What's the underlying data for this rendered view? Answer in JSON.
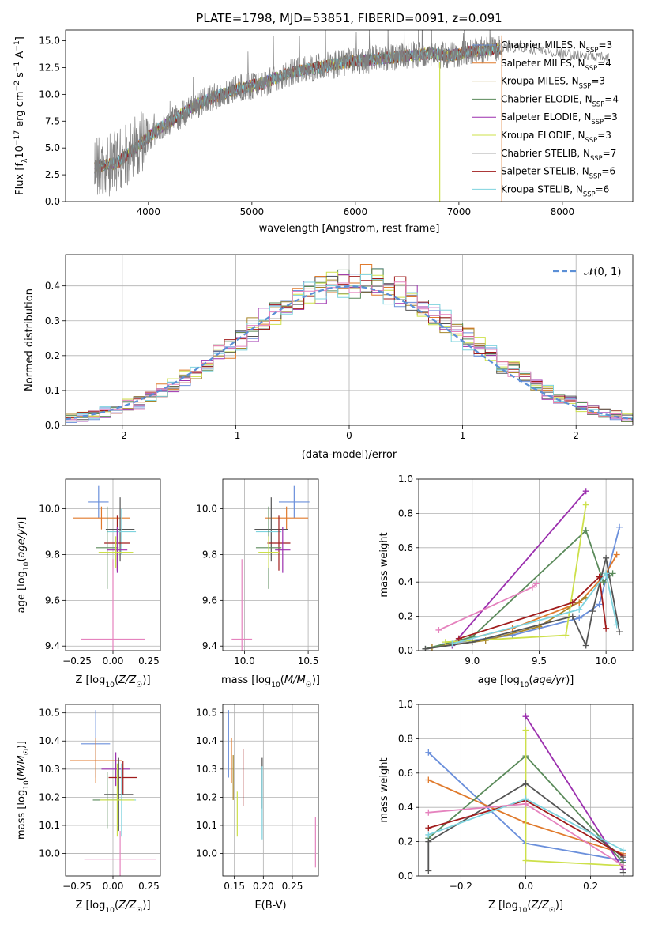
{
  "colors": {
    "Chabrier MILES": "#6a8fdb",
    "Salpeter MILES": "#e07a2c",
    "Kroupa MILES": "#a8862a",
    "Chabrier ELODIE": "#5a8a5a",
    "Salpeter ELODIE": "#9b2fae",
    "Kroupa ELODIE": "#cde04a",
    "Chabrier STELIB": "#555555",
    "Salpeter STELIB": "#a01c1c",
    "Kroupa STELIB": "#7ed3de",
    "pink": "#e583be",
    "data": "#808080"
  },
  "chart_data": [
    {
      "id": "spectrum",
      "type": "line",
      "title": "PLATE=1798, MJD=53851, FIBERID=0091, z=0.091",
      "xlabel": "wavelength [Angstrom, rest frame]",
      "ylabel_parts": [
        "Flux [f",
        "λ",
        "10",
        "−17",
        " erg cm",
        "−2",
        " s",
        "−1",
        " A",
        "−1",
        "]"
      ],
      "xlim": [
        3200,
        8680
      ],
      "ylim": [
        0,
        16
      ],
      "xticks": [
        4000,
        5000,
        6000,
        7000,
        8000
      ],
      "yticks": [
        0.0,
        2.5,
        5.0,
        7.5,
        10.0,
        12.5,
        15.0
      ],
      "data_series": {
        "name": "data",
        "x": [
          3500,
          3700,
          3900,
          4100,
          4300,
          4500,
          4700,
          4900,
          5100,
          5300,
          5500,
          5700,
          5900,
          6100,
          6300,
          6500,
          6700,
          6900,
          7100,
          7300
        ],
        "y": [
          3.2,
          3.6,
          5.2,
          6.8,
          8.0,
          9.2,
          10.0,
          10.6,
          11.0,
          11.8,
          12.3,
          12.6,
          13.0,
          13.2,
          13.4,
          13.6,
          13.8,
          13.6,
          14.0,
          14.2
        ]
      },
      "tail_series": {
        "x": [
          7400,
          7600,
          7800,
          8000,
          8200,
          8400
        ],
        "y": [
          14.2,
          14.4,
          14.1,
          13.8,
          13.6,
          13.4
        ]
      },
      "legend": [
        {
          "label": "Chabrier MILES, N",
          "sub": "SSP",
          "tail": "=3"
        },
        {
          "label": "Salpeter MILES, N",
          "sub": "SSP",
          "tail": "=4"
        },
        {
          "label": "Kroupa MILES, N",
          "sub": "SSP",
          "tail": "=3"
        },
        {
          "label": "Chabrier ELODIE, N",
          "sub": "SSP",
          "tail": "=4"
        },
        {
          "label": "Salpeter ELODIE, N",
          "sub": "SSP",
          "tail": "=3"
        },
        {
          "label": "Kroupa ELODIE, N",
          "sub": "SSP",
          "tail": "=3"
        },
        {
          "label": "Chabrier STELIB, N",
          "sub": "SSP",
          "tail": "=7"
        },
        {
          "label": "Salpeter STELIB, N",
          "sub": "SSP",
          "tail": "=6"
        },
        {
          "label": "Kroupa STELIB, N",
          "sub": "SSP",
          "tail": "=6"
        }
      ]
    },
    {
      "id": "histogram",
      "type": "line",
      "xlabel": "(data-model)/error",
      "ylabel": "Normed distribution",
      "xlim": [
        -2.5,
        2.5
      ],
      "ylim": [
        0,
        0.49
      ],
      "xticks": [
        -2,
        -1,
        0,
        1,
        2
      ],
      "ytick_values": [
        0.0,
        0.1,
        0.2,
        0.3,
        0.4
      ],
      "ytick_labels": [
        "0.0",
        "0.1",
        "0.2",
        "0.3",
        "0.4"
      ],
      "legend_label": "𝒩(0, 1)",
      "bin_width": 0.1
    },
    {
      "id": "age-vs-z",
      "type": "scatter",
      "xlabel": "Z [log₁₀(Z/Z☉)]",
      "ylabel": "age  [log₁₀(age/yr)]",
      "xlim": [
        -0.33,
        0.33
      ],
      "ylim": [
        9.38,
        10.13
      ],
      "xtick_values": [
        -0.25,
        0.0,
        0.25
      ],
      "xtick_labels": [
        "−0.25",
        "0.00",
        "0.25"
      ],
      "ytick_values": [
        9.4,
        9.6,
        9.8,
        10.0
      ],
      "ytick_labels": [
        "9.4",
        "9.6",
        "9.8",
        "10.0"
      ],
      "points": [
        {
          "model": "Chabrier MILES",
          "x": -0.1,
          "xerr": 0.07,
          "y": 10.03,
          "yerr": 0.07
        },
        {
          "model": "Salpeter MILES",
          "x": -0.08,
          "xerr": 0.2,
          "y": 9.96,
          "yerr": 0.05
        },
        {
          "model": "Chabrier STELIB",
          "x": 0.05,
          "xerr": 0.1,
          "y": 9.91,
          "yerr": 0.14
        },
        {
          "model": "Kroupa STELIB",
          "x": 0.06,
          "xerr": 0.1,
          "y": 9.9,
          "yerr": 0.1
        },
        {
          "model": "Salpeter STELIB",
          "x": 0.03,
          "xerr": 0.09,
          "y": 9.85,
          "yerr": 0.12
        },
        {
          "model": "Chabrier ELODIE",
          "x": -0.04,
          "xerr": 0.08,
          "y": 9.83,
          "yerr": 0.18
        },
        {
          "model": "Salpeter ELODIE",
          "x": 0.03,
          "xerr": 0.07,
          "y": 9.82,
          "yerr": 0.1
        },
        {
          "model": "Kroupa ELODIE",
          "x": 0.02,
          "xerr": 0.12,
          "y": 9.81,
          "yerr": 0.07
        },
        {
          "model": "pink",
          "x": 0.0,
          "xerr": 0.22,
          "y": 9.43,
          "yerr": 0.35
        }
      ]
    },
    {
      "id": "age-vs-mass",
      "type": "scatter",
      "xlabel": "mass [log₁₀(M/M☉)]",
      "xlim": [
        9.83,
        10.58
      ],
      "ylim": [
        9.38,
        10.13
      ],
      "xtick_values": [
        10.0,
        10.5
      ],
      "xtick_labels": [
        "10.0",
        "10.5"
      ],
      "ytick_values": [
        9.4,
        9.6,
        9.8,
        10.0
      ],
      "ytick_labels": [
        "9.4",
        "9.6",
        "9.8",
        "10.0"
      ],
      "points": [
        {
          "model": "Chabrier MILES",
          "x": 10.39,
          "xerr": 0.12,
          "y": 10.03,
          "yerr": 0.07
        },
        {
          "model": "Salpeter MILES",
          "x": 10.33,
          "xerr": 0.17,
          "y": 9.96,
          "yerr": 0.05
        },
        {
          "model": "Chabrier STELIB",
          "x": 10.21,
          "xerr": 0.13,
          "y": 9.91,
          "yerr": 0.14
        },
        {
          "model": "Kroupa STELIB",
          "x": 10.19,
          "xerr": 0.1,
          "y": 9.9,
          "yerr": 0.1
        },
        {
          "model": "Salpeter STELIB",
          "x": 10.27,
          "xerr": 0.09,
          "y": 9.85,
          "yerr": 0.12
        },
        {
          "model": "Chabrier ELODIE",
          "x": 10.19,
          "xerr": 0.1,
          "y": 9.83,
          "yerr": 0.18
        },
        {
          "model": "Salpeter ELODIE",
          "x": 10.3,
          "xerr": 0.06,
          "y": 9.82,
          "yerr": 0.1
        },
        {
          "model": "Kroupa ELODIE",
          "x": 10.19,
          "xerr": 0.08,
          "y": 9.81,
          "yerr": 0.07
        },
        {
          "model": "pink",
          "x": 9.98,
          "xerr": 0.08,
          "y": 9.43,
          "yerr": 0.35
        }
      ]
    },
    {
      "id": "weight-vs-age",
      "type": "line",
      "xlabel": "age  [log₁₀(age/yr)]",
      "ylabel": "mass weight",
      "xlim": [
        8.6,
        10.2
      ],
      "ylim": [
        0,
        1
      ],
      "xtick_values": [
        9.0,
        9.5,
        10.0
      ],
      "xtick_labels": [
        "9.0",
        "9.5",
        "10.0"
      ],
      "ytick_values": [
        0.0,
        0.2,
        0.4,
        0.6,
        0.8,
        1.0
      ],
      "ytick_labels": [
        "0.0",
        "0.2",
        "0.4",
        "0.6",
        "0.8",
        "1.0"
      ],
      "series": [
        {
          "model": "Chabrier MILES",
          "x": [
            8.8,
            9.3,
            9.8,
            9.95,
            10.1
          ],
          "y": [
            0.04,
            0.09,
            0.19,
            0.27,
            0.72
          ]
        },
        {
          "model": "Salpeter MILES",
          "x": [
            8.7,
            9.3,
            9.8,
            10.0,
            10.08
          ],
          "y": [
            0.02,
            0.13,
            0.28,
            0.45,
            0.56
          ]
        },
        {
          "model": "Kroupa MILES",
          "x": [
            8.7,
            9.1,
            9.5,
            9.85
          ],
          "y": [
            0.02,
            0.06,
            0.14,
            0.31
          ]
        },
        {
          "model": "Chabrier ELODIE",
          "x": [
            8.65,
            9.0,
            9.85,
            9.98,
            10.05
          ],
          "y": [
            0.01,
            0.08,
            0.7,
            0.4,
            0.45
          ]
        },
        {
          "model": "Salpeter ELODIE",
          "x": [
            8.85,
            9.85
          ],
          "y": [
            0.03,
            0.93
          ]
        },
        {
          "model": "Kroupa ELODIE",
          "x": [
            8.8,
            9.7,
            9.85
          ],
          "y": [
            0.05,
            0.09,
            0.85
          ]
        },
        {
          "model": "Chabrier STELIB",
          "x": [
            8.65,
            9.0,
            9.75,
            9.85,
            9.9,
            10.0,
            10.1
          ],
          "y": [
            0.01,
            0.05,
            0.2,
            0.03,
            0.23,
            0.54,
            0.11
          ]
        },
        {
          "model": "Salpeter STELIB",
          "x": [
            8.9,
            9.75,
            9.95,
            10.0
          ],
          "y": [
            0.07,
            0.28,
            0.43,
            0.13
          ]
        },
        {
          "model": "Kroupa STELIB",
          "x": [
            8.85,
            9.8,
            10.0,
            10.08
          ],
          "y": [
            0.04,
            0.24,
            0.45,
            0.15
          ]
        },
        {
          "model": "pink",
          "x": [
            8.75,
            9.45,
            9.48
          ],
          "y": [
            0.12,
            0.37,
            0.39
          ]
        }
      ]
    },
    {
      "id": "mass-vs-z",
      "type": "scatter",
      "xlabel": "Z [log₁₀(Z/Z☉)]",
      "ylabel": "mass [log₁₀(M/M☉)]",
      "xlim": [
        -0.33,
        0.33
      ],
      "ylim": [
        9.92,
        10.53
      ],
      "xtick_values": [
        -0.25,
        0.0,
        0.25
      ],
      "xtick_labels": [
        "−0.25",
        "0.00",
        "0.25"
      ],
      "ytick_values": [
        10.0,
        10.1,
        10.2,
        10.3,
        10.4,
        10.5
      ],
      "ytick_labels": [
        "10.0",
        "10.1",
        "10.2",
        "10.3",
        "10.4",
        "10.5"
      ],
      "points": [
        {
          "model": "Chabrier MILES",
          "x": -0.12,
          "xerr": 0.1,
          "y": 10.39,
          "yerr": 0.12
        },
        {
          "model": "Salpeter MILES",
          "x": -0.12,
          "xerr": 0.18,
          "y": 10.33,
          "yerr": 0.08
        },
        {
          "model": "Salpeter ELODIE",
          "x": 0.02,
          "xerr": 0.1,
          "y": 10.3,
          "yerr": 0.06
        },
        {
          "model": "Salpeter STELIB",
          "x": 0.07,
          "xerr": 0.1,
          "y": 10.27,
          "yerr": 0.06
        },
        {
          "model": "Chabrier STELIB",
          "x": 0.04,
          "xerr": 0.1,
          "y": 10.21,
          "yerr": 0.13
        },
        {
          "model": "Kroupa STELIB",
          "x": 0.06,
          "xerr": 0.1,
          "y": 10.19,
          "yerr": 0.13
        },
        {
          "model": "Chabrier ELODIE",
          "x": -0.04,
          "xerr": 0.1,
          "y": 10.19,
          "yerr": 0.1
        },
        {
          "model": "Kroupa ELODIE",
          "x": 0.03,
          "xerr": 0.12,
          "y": 10.19,
          "yerr": 0.13
        },
        {
          "model": "pink",
          "x": 0.05,
          "xerr": 0.25,
          "y": 9.98,
          "yerr": 0.1
        }
      ]
    },
    {
      "id": "mass-vs-ebv",
      "type": "scatter",
      "xlabel": "E(B-V)",
      "xlim": [
        0.13,
        0.295
      ],
      "ylim": [
        9.92,
        10.53
      ],
      "xtick_values": [
        0.15,
        0.2,
        0.25
      ],
      "xtick_labels": [
        "0.15",
        "0.20",
        "0.25"
      ],
      "ytick_values": [
        10.0,
        10.1,
        10.2,
        10.3,
        10.4,
        10.5
      ],
      "ytick_labels": [
        "10.0",
        "10.1",
        "10.2",
        "10.3",
        "10.4",
        "10.5"
      ],
      "points": [
        {
          "model": "Chabrier MILES",
          "x": 0.14,
          "y": 10.39,
          "yerr": 0.12
        },
        {
          "model": "Salpeter MILES",
          "x": 0.145,
          "y": 10.33,
          "yerr": 0.08
        },
        {
          "model": "Kroupa MILES",
          "x": 0.148,
          "y": 10.27,
          "yerr": 0.08
        },
        {
          "model": "Kroupa ELODIE",
          "x": 0.155,
          "y": 10.14,
          "yerr": 0.08
        },
        {
          "model": "Salpeter STELIB",
          "x": 0.165,
          "y": 10.27,
          "yerr": 0.1
        },
        {
          "model": "Chabrier STELIB",
          "x": 0.198,
          "y": 10.25,
          "yerr": 0.09
        },
        {
          "model": "Kroupa STELIB",
          "x": 0.198,
          "y": 10.18,
          "yerr": 0.13
        },
        {
          "model": "pink",
          "x": 0.29,
          "y": 10.04,
          "yerr": 0.09
        }
      ]
    },
    {
      "id": "weight-vs-z",
      "type": "line",
      "xlabel": "Z [log₁₀(Z/Z☉)]",
      "ylabel": "mass weight",
      "xlim": [
        -0.33,
        0.33
      ],
      "ylim": [
        0,
        1
      ],
      "xtick_values": [
        -0.2,
        0.0,
        0.2
      ],
      "xtick_labels": [
        "−0.2",
        "0.0",
        "0.2"
      ],
      "ytick_values": [
        0.0,
        0.2,
        0.4,
        0.6,
        0.8,
        1.0
      ],
      "ytick_labels": [
        "0.0",
        "0.2",
        "0.4",
        "0.6",
        "0.8",
        "1.0"
      ],
      "series": [
        {
          "model": "Chabrier MILES",
          "x": [
            -0.3,
            0.0,
            0.3
          ],
          "y": [
            0.72,
            0.19,
            0.09
          ]
        },
        {
          "model": "Salpeter MILES",
          "x": [
            -0.3,
            0.0,
            0.3
          ],
          "y": [
            0.56,
            0.31,
            0.13
          ]
        },
        {
          "model": "Chabrier ELODIE",
          "x": [
            -0.3,
            0.0,
            0.3
          ],
          "y": [
            0.22,
            0.7,
            0.08
          ]
        },
        {
          "model": "Salpeter ELODIE",
          "x": [
            0.0,
            0.3
          ],
          "y": [
            0.93,
            0.04
          ]
        },
        {
          "model": "Kroupa ELODIE",
          "x": [
            0.0,
            0.0,
            0.3
          ],
          "y": [
            0.85,
            0.09,
            0.06
          ]
        },
        {
          "model": "Chabrier STELIB",
          "x": [
            -0.3,
            -0.3,
            0.0,
            0.3,
            0.3
          ],
          "y": [
            0.03,
            0.2,
            0.54,
            0.11,
            0.02
          ]
        },
        {
          "model": "Salpeter STELIB",
          "x": [
            -0.3,
            0.0,
            0.3
          ],
          "y": [
            0.28,
            0.44,
            0.12
          ]
        },
        {
          "model": "Kroupa STELIB",
          "x": [
            -0.3,
            0.0,
            0.3
          ],
          "y": [
            0.24,
            0.45,
            0.15
          ]
        },
        {
          "model": "pink",
          "x": [
            -0.3,
            0.0,
            0.3
          ],
          "y": [
            0.37,
            0.42,
            0.06
          ]
        }
      ]
    }
  ]
}
